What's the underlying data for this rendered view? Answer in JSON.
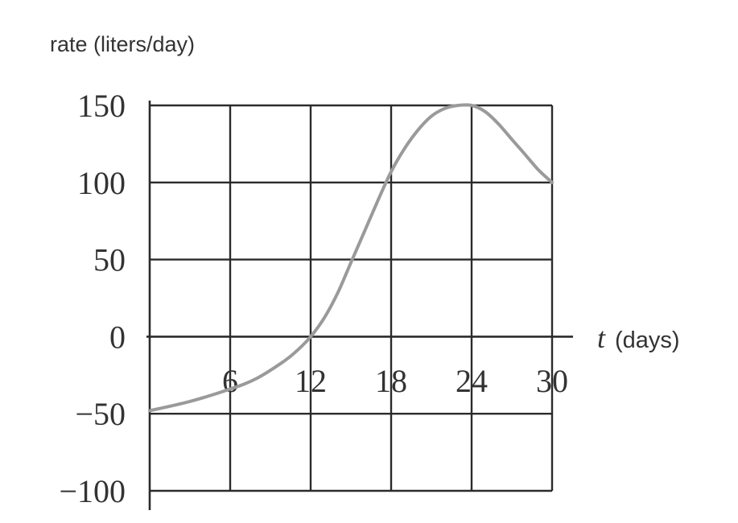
{
  "chart_data": {
    "type": "line",
    "ylabel": "rate (liters/day)",
    "xlabel_var": "t",
    "xlabel_unit": "(days)",
    "x_ticks": [
      "6",
      "12",
      "18",
      "24",
      "30"
    ],
    "y_ticks": [
      "150",
      "100",
      "50",
      "0",
      "−50",
      "−100"
    ],
    "x_tick_values": [
      6,
      12,
      18,
      24,
      30
    ],
    "y_tick_values": [
      150,
      100,
      50,
      0,
      -50,
      -100
    ],
    "xlim": [
      0,
      30
    ],
    "ylim": [
      -100,
      150
    ],
    "grid": true,
    "series": [
      {
        "color": "#9a9a9a",
        "x": [
          0,
          3,
          6,
          8,
          10,
          11,
          12,
          13,
          14,
          15,
          16,
          17,
          18,
          19,
          20,
          21,
          22,
          23,
          24,
          25,
          26,
          27,
          28,
          29,
          30
        ],
        "y": [
          -48,
          -42,
          -34,
          -27,
          -16,
          -9,
          0,
          12,
          28,
          48,
          68,
          88,
          107,
          122,
          134,
          143,
          148,
          150,
          150,
          146,
          138,
          128,
          118,
          108,
          100
        ]
      }
    ]
  }
}
